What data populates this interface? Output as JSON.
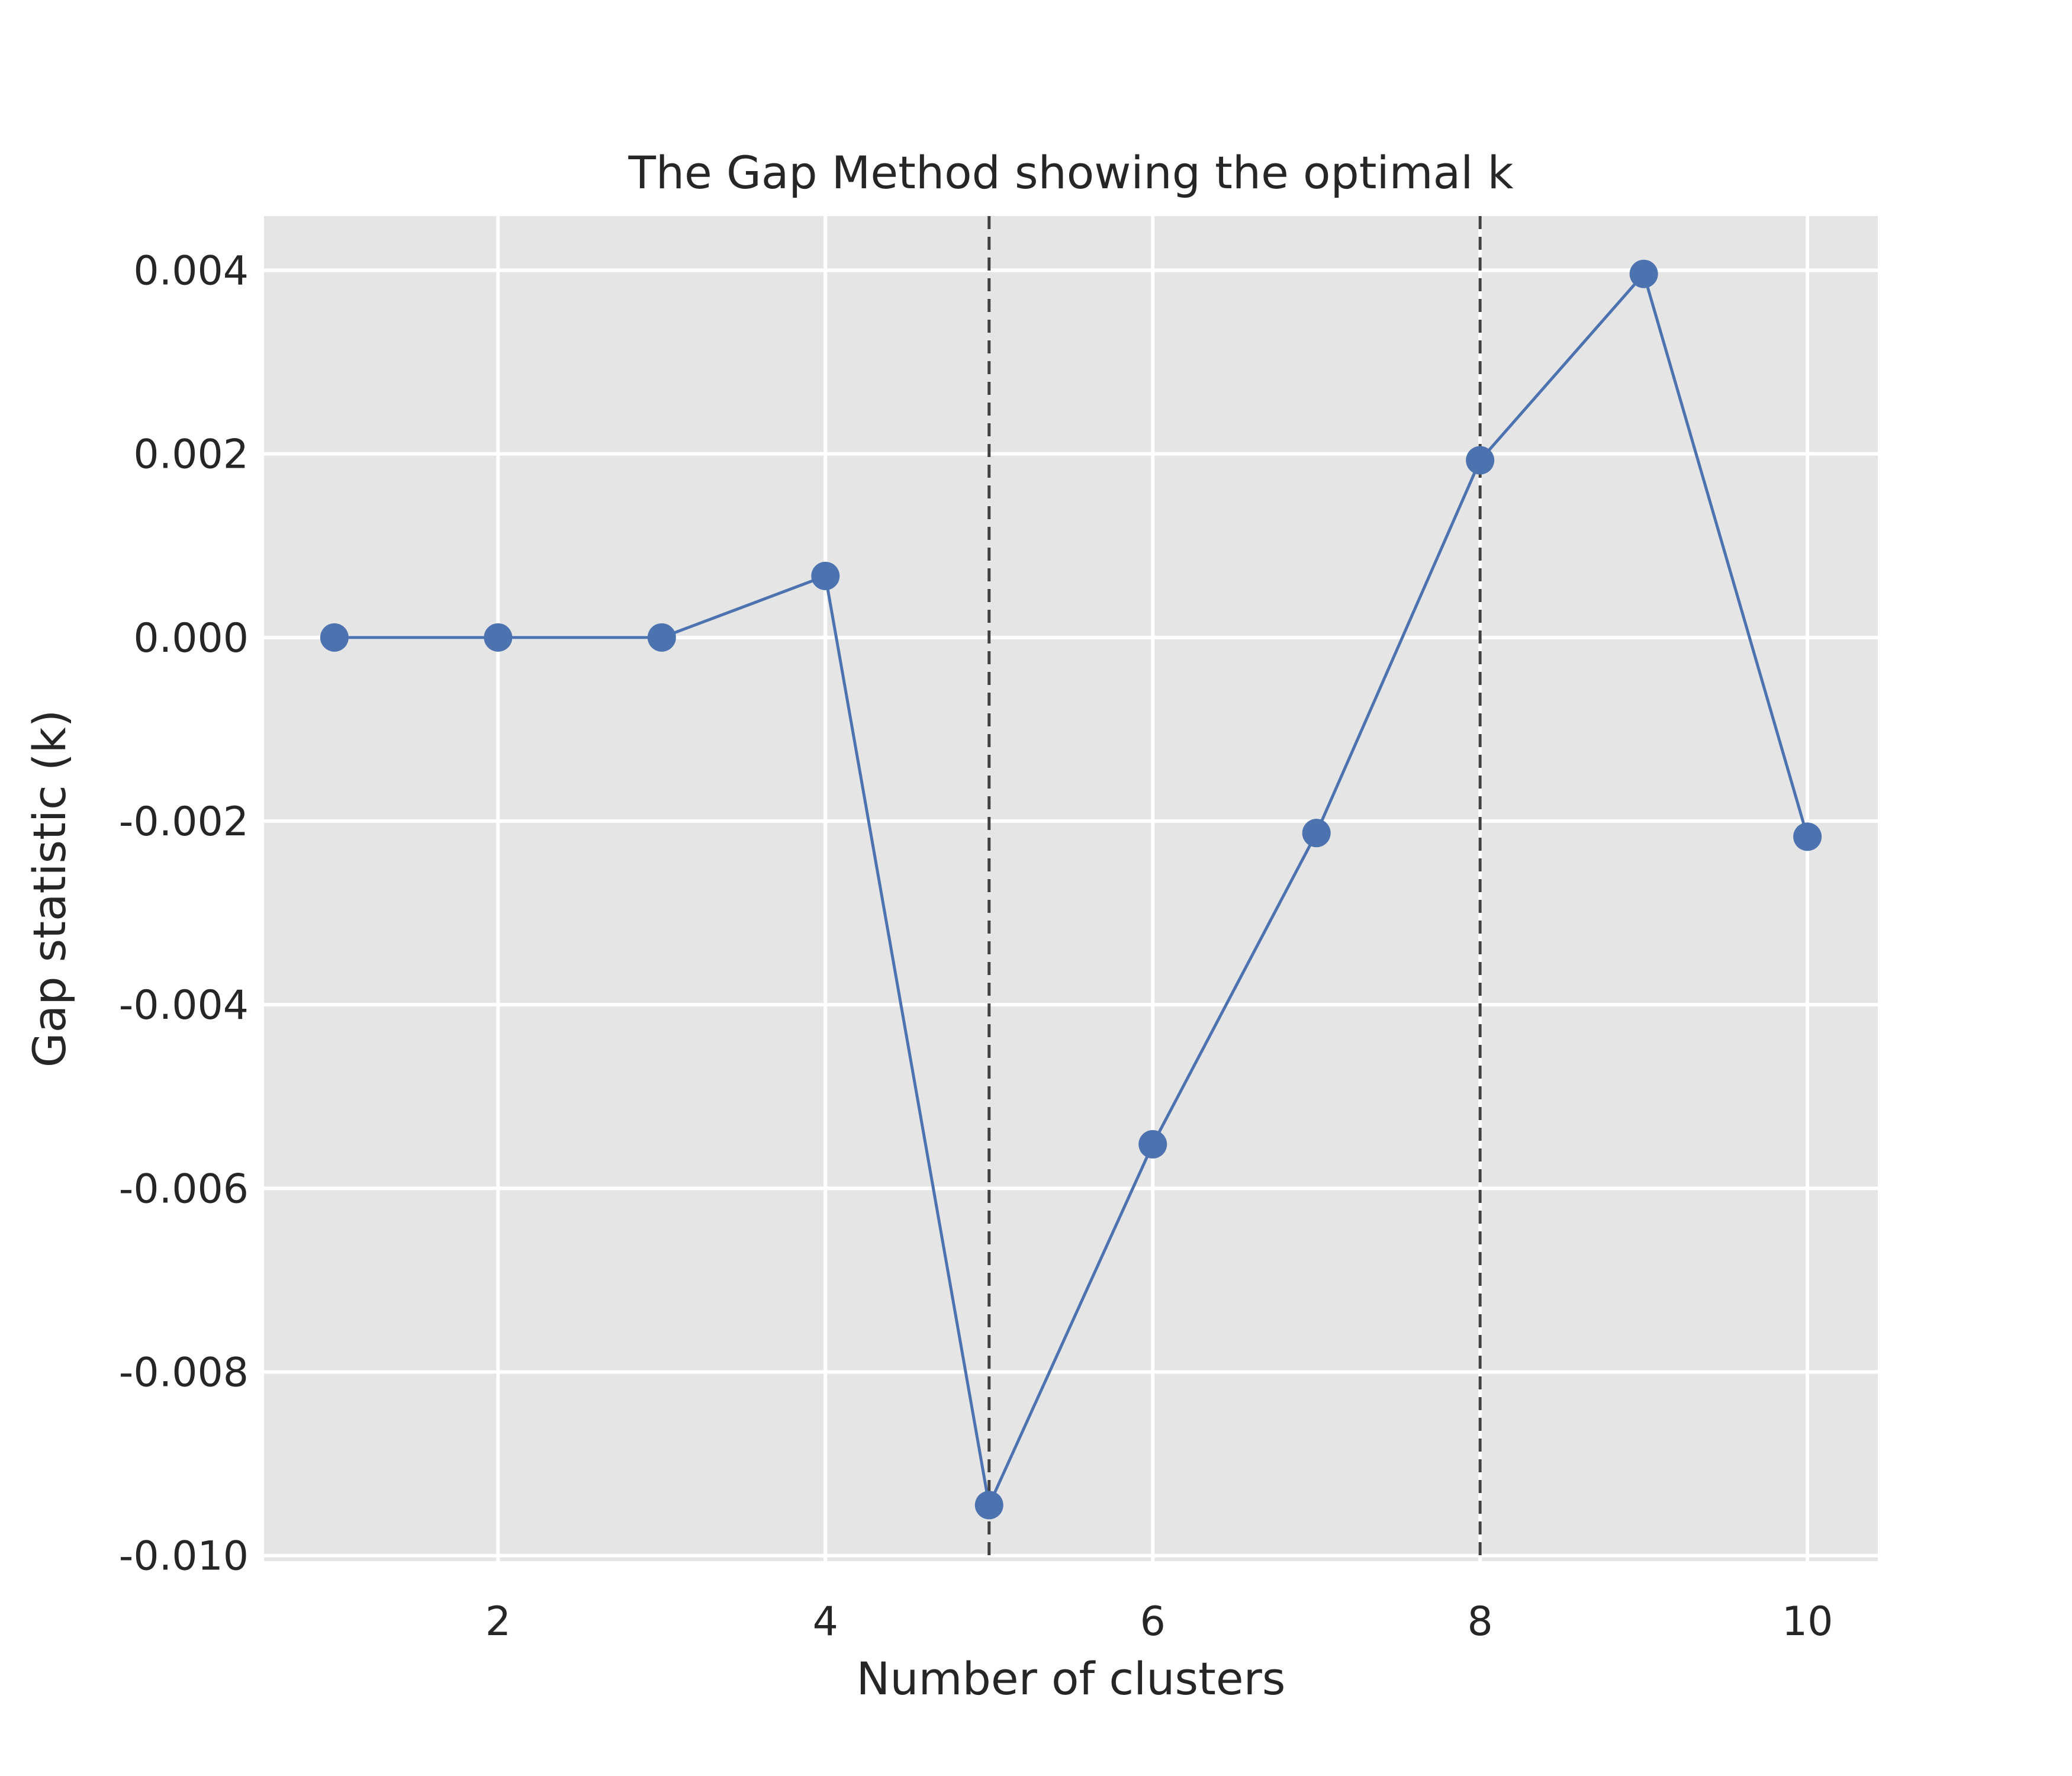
{
  "chart_data": {
    "type": "line",
    "title": "The Gap Method showing the optimal k",
    "xlabel": "Number of clusters",
    "ylabel": "Gap statistic (k)",
    "xlim": [
      0.57,
      10.43
    ],
    "ylim": [
      -0.01006,
      0.00459
    ],
    "xticks": [
      2,
      4,
      6,
      8,
      10
    ],
    "xtick_labels": [
      "2",
      "4",
      "6",
      "8",
      "10"
    ],
    "yticks": [
      0.004,
      0.002,
      0.0,
      -0.002,
      -0.004,
      -0.006,
      -0.008,
      -0.01
    ],
    "ytick_labels": [
      "0.004",
      "0.002",
      "0.000",
      "-0.002",
      "-0.004",
      "-0.006",
      "-0.008",
      "-0.010"
    ],
    "grid": true,
    "series": [
      {
        "x": [
          1,
          2,
          3,
          4,
          5,
          6,
          7,
          8,
          9,
          10
        ],
        "y": [
          0.0,
          0.0,
          0.0,
          0.00067,
          -0.00945,
          -0.00552,
          -0.00213,
          0.00193,
          0.00396,
          -0.00217
        ],
        "color": "#4c72b0",
        "marker": "circle"
      }
    ],
    "vlines": [
      {
        "x": 5,
        "style": "dashed",
        "color": "#404040"
      },
      {
        "x": 8,
        "style": "dashed",
        "color": "#404040"
      }
    ],
    "colors": {
      "plot_background": "#e5e5e5",
      "grid": "#ffffff",
      "text": "#262626"
    }
  }
}
